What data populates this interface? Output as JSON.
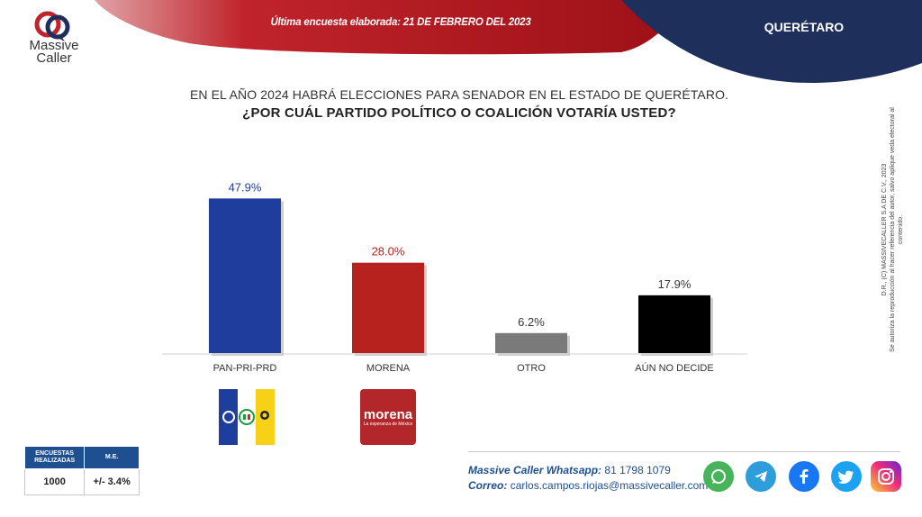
{
  "header": {
    "last_survey": "Última encuesta elaborada:  21 DE FEBRERO DEL 2023",
    "state": "QUERÉTARO",
    "colors": {
      "red": "#b8181f",
      "navy": "#1e2f5c"
    }
  },
  "brand": {
    "logo_line1": "Massive",
    "logo_line2": "Caller"
  },
  "titles": {
    "line1": "EN EL AÑO 2024 HABRÁ ELECCIONES PARA SENADOR EN EL ESTADO DE QUERÉTARO.",
    "line2": "¿POR CUÁL PARTIDO POLÍTICO O COALICIÓN  VOTARÍA USTED?"
  },
  "chart_data": {
    "type": "bar",
    "categories": [
      "PAN-PRI-PRD",
      "MORENA",
      "OTRO",
      "AÚN NO DECIDE"
    ],
    "values": [
      47.9,
      28.0,
      6.2,
      17.9
    ],
    "value_labels": [
      "47.9%",
      "28.0%",
      "6.2%",
      "17.9%"
    ],
    "colors": [
      "#1f3d9c",
      "#b8221e",
      "#7a7a7a",
      "#000000"
    ],
    "label_colors": [
      "#1f3d9c",
      "#b8221e",
      "#333333",
      "#333333"
    ],
    "ylim": [
      0,
      48
    ]
  },
  "party_logos": {
    "coalition_colors": [
      "#1f3d9c",
      "#ffffff",
      "#f7d117"
    ],
    "morena_word": "morena",
    "morena_tagline": "La esperanza de México"
  },
  "survey": {
    "col1_header_a": "ENCUESTAS",
    "col1_header_b": "REALIZADAS",
    "col2_header": "M.E.",
    "count": "1000",
    "margin": "+/- 3.4%"
  },
  "contact": {
    "whatsapp_label": "Massive Caller Whatsapp:",
    "whatsapp_number": "81 1798  1079",
    "email_label": "Correo:",
    "email": "carlos.campos.riojas@massivecaller.com"
  },
  "social": [
    "whatsapp-icon",
    "telegram-icon",
    "facebook-icon",
    "twitter-icon",
    "instagram-icon"
  ],
  "copyright": {
    "line1": "D.R., (C) MASSIVECALLER S.A DE C.V., 2023",
    "line2": "Se autoriza la reproducción al hacer referencia del autor, salvo aplique veda electoral al contenido."
  }
}
